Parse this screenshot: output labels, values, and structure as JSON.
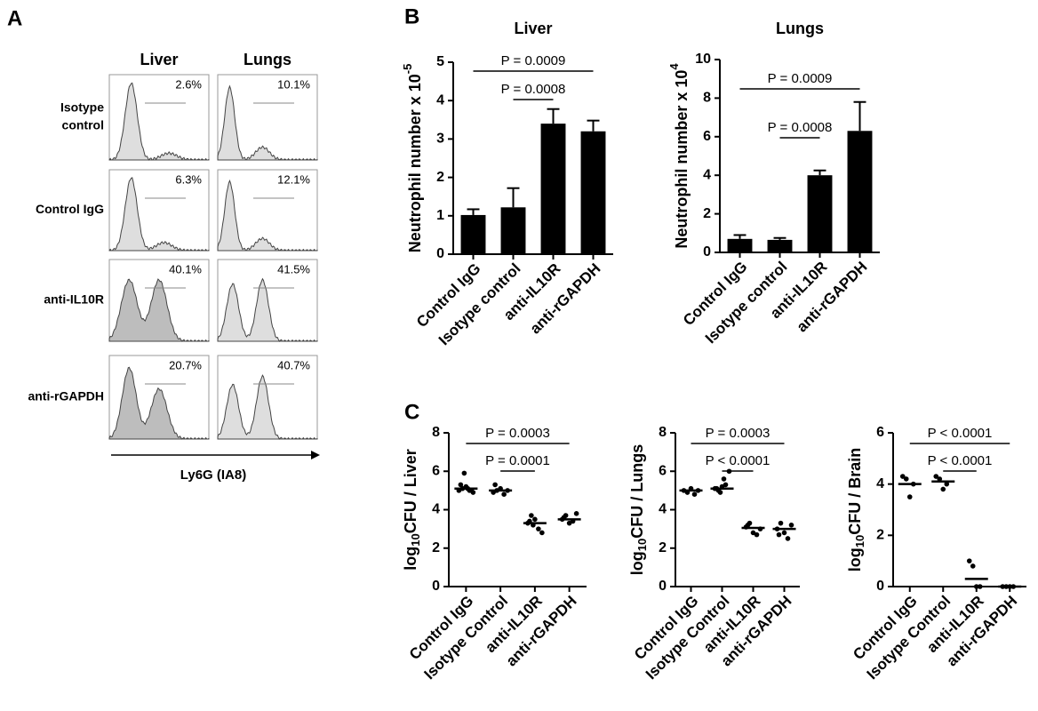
{
  "panel_labels": [
    "A",
    "B",
    "C"
  ],
  "flow": {
    "columns": [
      "Liver",
      "Lungs"
    ],
    "rows": [
      {
        "label": [
          "Isotype",
          "control"
        ],
        "percents": [
          "2.6%",
          "10.1%"
        ]
      },
      {
        "label": [
          "Control IgG"
        ],
        "percents": [
          "6.3%",
          "12.1%"
        ]
      },
      {
        "label": [
          "anti-IL10R"
        ],
        "percents": [
          "40.1%",
          "41.5%"
        ]
      },
      {
        "label": [
          "anti-rGAPDH"
        ],
        "percents": [
          "20.7%",
          "40.7%"
        ]
      }
    ],
    "xlabel": "Ly6G (IA8)"
  },
  "chart_data": [
    {
      "type": "bar",
      "title": "Liver",
      "ylabel": "Neutrophil number x 10",
      "ylabel_exp": "-5",
      "categories": [
        "Control IgG",
        "Isotype control",
        "anti-IL10R",
        "anti-rGAPDH"
      ],
      "values": [
        1.02,
        1.22,
        3.4,
        3.2
      ],
      "errors": [
        0.15,
        0.5,
        0.38,
        0.28
      ],
      "color": "#000000",
      "ylim": [
        0,
        5
      ],
      "yticks": [
        0,
        1,
        2,
        3,
        4,
        5
      ],
      "annotations": [
        "P = 0.0009",
        "P = 0.0008"
      ]
    },
    {
      "type": "bar",
      "title": "Lungs",
      "ylabel": "Neutrophil number x 10",
      "ylabel_exp": "4",
      "categories": [
        "Control IgG",
        "Isotype control",
        "anti-IL10R",
        "anti-rGAPDH"
      ],
      "values": [
        0.7,
        0.65,
        4.0,
        6.3
      ],
      "errors": [
        0.2,
        0.1,
        0.25,
        1.5
      ],
      "color": "#000000",
      "ylim": [
        0,
        10
      ],
      "yticks": [
        0,
        2,
        4,
        6,
        8,
        10
      ],
      "annotations": [
        "P = 0.0009",
        "P = 0.0008"
      ]
    },
    {
      "type": "dot",
      "ylabel": "log",
      "ylabel_sub": "10",
      "ylabel_rest": "CFU / Liver",
      "categories": [
        "Control IgG",
        "Isotype Control",
        "anti-IL10R",
        "anti-rGAPDH"
      ],
      "points": [
        [
          5.0,
          5.1,
          5.2,
          5.0,
          4.9,
          5.3,
          5.9,
          5.1,
          5.0
        ],
        [
          4.9,
          5.0,
          5.1,
          4.8,
          5.0,
          5.3
        ],
        [
          3.3,
          3.7,
          3.5,
          3.0,
          2.8,
          3.4,
          3.2
        ],
        [
          3.5,
          3.7,
          3.3,
          3.4,
          3.8,
          3.6
        ]
      ],
      "means": [
        5.1,
        5.0,
        3.3,
        3.5
      ],
      "ylim": [
        0,
        8
      ],
      "yticks": [
        0,
        2,
        4,
        6,
        8
      ],
      "annotations": [
        "P = 0.0003",
        "P = 0.0001"
      ]
    },
    {
      "type": "dot",
      "ylabel": "log",
      "ylabel_sub": "10",
      "ylabel_rest": "CFU / Lungs",
      "categories": [
        "Control IgG",
        "Isotype Control",
        "anti-IL10R",
        "anti-rGAPDH"
      ],
      "points": [
        [
          5.0,
          4.9,
          5.1,
          4.8,
          5.0
        ],
        [
          5.1,
          5.0,
          5.2,
          5.3,
          6.0,
          5.1,
          4.9,
          5.6
        ],
        [
          3.1,
          3.3,
          2.8,
          2.7,
          3.0,
          3.2
        ],
        [
          3.0,
          3.3,
          2.8,
          2.5,
          3.2,
          2.7
        ]
      ],
      "means": [
        5.0,
        5.1,
        3.05,
        3.0
      ],
      "ylim": [
        0,
        8
      ],
      "yticks": [
        0,
        2,
        4,
        6,
        8
      ],
      "annotations": [
        "P = 0.0003",
        "P < 0.0001"
      ]
    },
    {
      "type": "dot",
      "ylabel": "log",
      "ylabel_sub": "10",
      "ylabel_rest": "CFU / Brain",
      "categories": [
        "Control IgG",
        "Isotype Control",
        "anti-IL10R",
        "anti-rGAPDH"
      ],
      "points": [
        [
          4.3,
          4.2,
          3.5,
          4.0
        ],
        [
          4.3,
          4.2,
          3.8,
          4.0
        ],
        [
          1.0,
          0.8,
          0,
          0
        ],
        [
          0,
          0,
          0,
          0
        ]
      ],
      "means": [
        4.0,
        4.1,
        0.3,
        0
      ],
      "ylim": [
        0,
        6
      ],
      "yticks": [
        0,
        2,
        4,
        6
      ],
      "annotations": [
        "P < 0.0001",
        "P < 0.0001"
      ]
    }
  ]
}
